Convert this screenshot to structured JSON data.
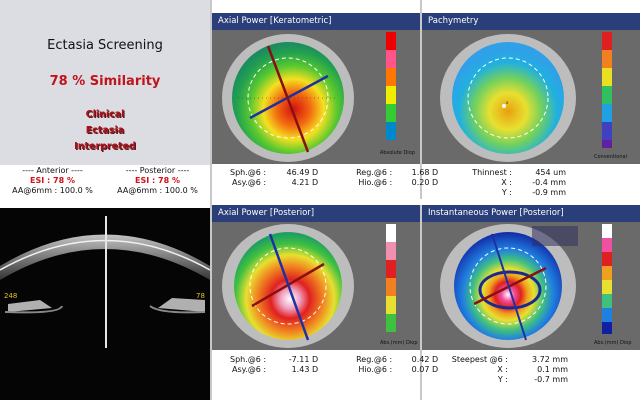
{
  "screening": {
    "title": "Ectasia Screening",
    "similarity": "78 % Similarity",
    "interpretation": [
      "Clinical",
      "Ectasia",
      "Interpreted"
    ]
  },
  "anterior": {
    "header": "---- Anterior ----",
    "esi": "ESI : 78 %",
    "aa": "AA@6mm : 100.0 %"
  },
  "posterior": {
    "header": "---- Posterior ----",
    "esi": "ESI : 78 %",
    "aa": "AA@6mm : 100.0 %"
  },
  "oct": {
    "left_label": "248",
    "right_label": "78"
  },
  "panels": {
    "axial_keratometric": {
      "title": "Axial Power [Keratometric]",
      "stats": {
        "sph_label": "Sph.@6 :",
        "sph": "46.49 D",
        "asy_label": "Asy.@6 :",
        "asy": "4.21 D",
        "reg_label": "Reg.@6 :",
        "reg": "1.68 D",
        "hio_label": "Hio.@6 :",
        "hio": "0.20 D"
      },
      "scale_caption": "Absolute Diop",
      "scale_ticks": [
        "55.5",
        "53.5",
        "51.5",
        "50.5",
        "49.5",
        "48.5",
        "47.5",
        "46.5",
        "45.5",
        "44.5",
        "43.5",
        "42.5",
        "41.5",
        "40.5",
        "39.5",
        "38.5"
      ]
    },
    "pachymetry": {
      "title": "Pachymetry",
      "stats": {
        "thinnest_label": "Thinnest :",
        "thinnest": "454 um",
        "x_label": "X :",
        "x": "-0.4 mm",
        "y_label": "Y :",
        "y": "-0.9 mm"
      },
      "scale_caption": "Conventional",
      "scale_ticks": [
        "560",
        "540",
        "520",
        "500",
        "480",
        "460",
        "440",
        "420",
        "400",
        "380"
      ]
    },
    "axial_posterior": {
      "title": "Axial Power [Posterior]",
      "stats": {
        "sph_label": "Sph.@6 :",
        "sph": "-7.11 D",
        "asy_label": "Asy.@6 :",
        "asy": "1.43 D",
        "reg_label": "Reg.@6 :",
        "reg": "0.42 D",
        "hio_label": "Hio.@6 :",
        "hio": "0.07 D"
      },
      "scale_caption": "Abs.(mm) Diop",
      "scale_ticks": [
        "-4.3",
        "-4.8",
        "-5.3",
        "-5.8",
        "-6.3",
        "-6.8",
        "-7.3",
        "-7.8",
        "-8.3",
        "-8.8",
        "-9.3",
        "-9.8",
        "-10.3"
      ]
    },
    "instantaneous_posterior": {
      "title": "Instantaneous Power [Posterior]",
      "stats": {
        "steepest_label": "Steepest @6 :",
        "steepest": "3.72 mm",
        "x_label": "X :",
        "x": "0.1 mm",
        "y_label": "Y :",
        "y": "-0.7 mm"
      },
      "scale_caption": "Abs.(mm) Diop",
      "scale_ticks": [
        "-3.3",
        "-3.5",
        "-3.7",
        "-3.9",
        "-4.1",
        "-4.3",
        "-4.5",
        "-4.7",
        "-4.9",
        "-5.1",
        "-5.3",
        "-5.5",
        "-5.7",
        "-6.3"
      ]
    }
  },
  "colors": {
    "accent_red": "#c0141c",
    "panel_header": "#2a3e7a",
    "left_background": "#dcdde3"
  }
}
